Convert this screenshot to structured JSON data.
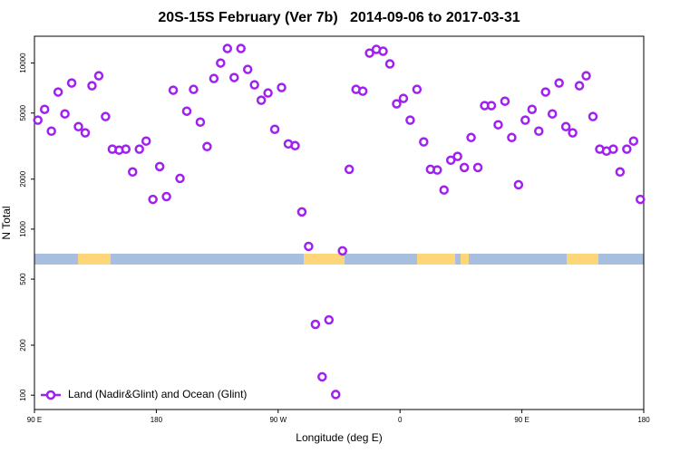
{
  "chart_data": {
    "type": "scatter",
    "title": "20S-15S February (Ver 7b)   2014-09-06 to 2017-03-31",
    "xlabel": "Longitude (deg E)",
    "ylabel": "N Total",
    "log_y": true,
    "legend": "bottomleft",
    "xlim": [
      90,
      540
    ],
    "xticks": [
      {
        "value": 90,
        "label": "90 E"
      },
      {
        "value": 180,
        "label": "180"
      },
      {
        "value": 270,
        "label": "90 W"
      },
      {
        "value": 360,
        "label": "0"
      },
      {
        "value": 450,
        "label": "90 E"
      },
      {
        "value": 540,
        "label": "180"
      }
    ],
    "ylim": [
      82,
      14500
    ],
    "yticks": [
      100,
      200,
      500,
      1000,
      2000,
      5000,
      10000
    ],
    "series": [
      {
        "name": "Land (Nadir&Glint) and Ocean (Glint)",
        "color": "#a020f0",
        "x": [
          92.5,
          97.5,
          102.5,
          107.5,
          112.5,
          117.5,
          122.5,
          127.5,
          132.5,
          137.5,
          142.5,
          147.5,
          152.5,
          157.5,
          162.5,
          167.5,
          172.5,
          177.5,
          182.5,
          187.5,
          192.5,
          197.5,
          202.5,
          207.5,
          212.5,
          217.5,
          222.5,
          227.5,
          232.5,
          237.5,
          242.5,
          247.5,
          252.5,
          257.5,
          262.5,
          267.5,
          272.5,
          277.5,
          282.5,
          287.5,
          292.5,
          297.5,
          302.5,
          307.5,
          312.5,
          317.5,
          322.5,
          327.5,
          332.5,
          337.5,
          342.5,
          347.5,
          352.5,
          357.5,
          362.5,
          367.5,
          372.5,
          377.5,
          382.5,
          387.5,
          392.5,
          397.5,
          402.5,
          407.5,
          412.5,
          417.5,
          422.5,
          427.5,
          432.5,
          437.5,
          442.5,
          447.5,
          452.5,
          457.5,
          462.5,
          467.5,
          472.5,
          477.5,
          482.5,
          487.5,
          492.5,
          497.5,
          502.5,
          507.5,
          512.5,
          517.5,
          522.5,
          527.5,
          532.5,
          537.5
        ],
        "values": [
          4530,
          5260,
          3890,
          6690,
          4940,
          7580,
          4140,
          3800,
          7300,
          8380,
          4760,
          3030,
          2990,
          3030,
          2210,
          3030,
          3390,
          1510,
          2380,
          1570,
          6860,
          2020,
          5130,
          6940,
          4410,
          3140,
          8070,
          10000,
          12230,
          8180,
          12230,
          9150,
          7390,
          5970,
          6600,
          3990,
          7120,
          3260,
          3180,
          1270,
          787,
          267,
          129,
          284,
          101,
          740,
          2290,
          6940,
          6770,
          11480,
          12080,
          11780,
          9880,
          5680,
          6120,
          4530,
          6940,
          3350,
          2290,
          2270,
          1720,
          2600,
          2740,
          2350,
          3560,
          2350,
          5540,
          5540,
          4250,
          5890,
          3560,
          1850,
          4530,
          5260,
          3890,
          6690,
          4940,
          7580,
          4140,
          3800,
          7300,
          8380,
          4760,
          3030,
          2950,
          3030,
          2210,
          3030,
          3390,
          1510
        ]
      }
    ]
  }
}
